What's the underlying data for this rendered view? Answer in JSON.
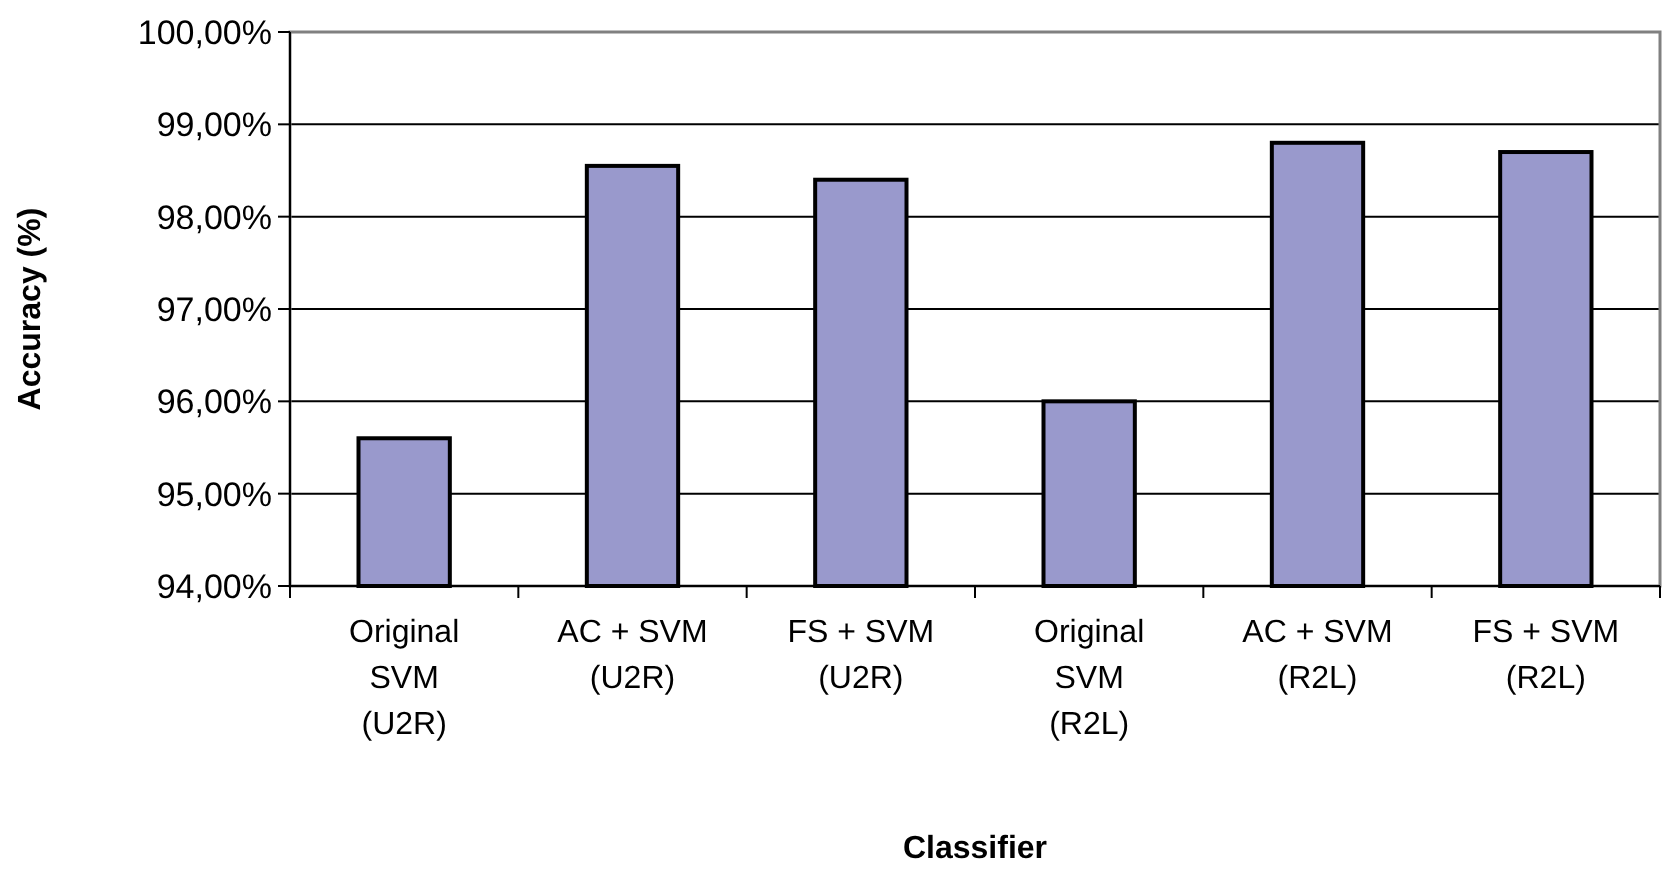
{
  "chart_data": {
    "type": "bar",
    "xlabel": "Classifier",
    "ylabel": "Accuracy (%)",
    "categories": [
      "Original\nSVM\n(U2R)",
      "AC + SVM\n(U2R)",
      "FS + SVM\n(U2R)",
      "Original\nSVM\n(R2L)",
      "AC + SVM\n(R2L)",
      "FS + SVM\n(R2L)"
    ],
    "values": [
      95.6,
      98.55,
      98.4,
      96.0,
      98.8,
      98.7
    ],
    "color": "#9999cc",
    "ylim": [
      94,
      100
    ],
    "yticks": [
      {
        "value": 94,
        "label": "94,00%"
      },
      {
        "value": 95,
        "label": "95,00%"
      },
      {
        "value": 96,
        "label": "96,00%"
      },
      {
        "value": 97,
        "label": "97,00%"
      },
      {
        "value": 98,
        "label": "98,00%"
      },
      {
        "value": 99,
        "label": "99,00%"
      },
      {
        "value": 100,
        "label": "100,00%"
      }
    ],
    "grid": "y"
  }
}
